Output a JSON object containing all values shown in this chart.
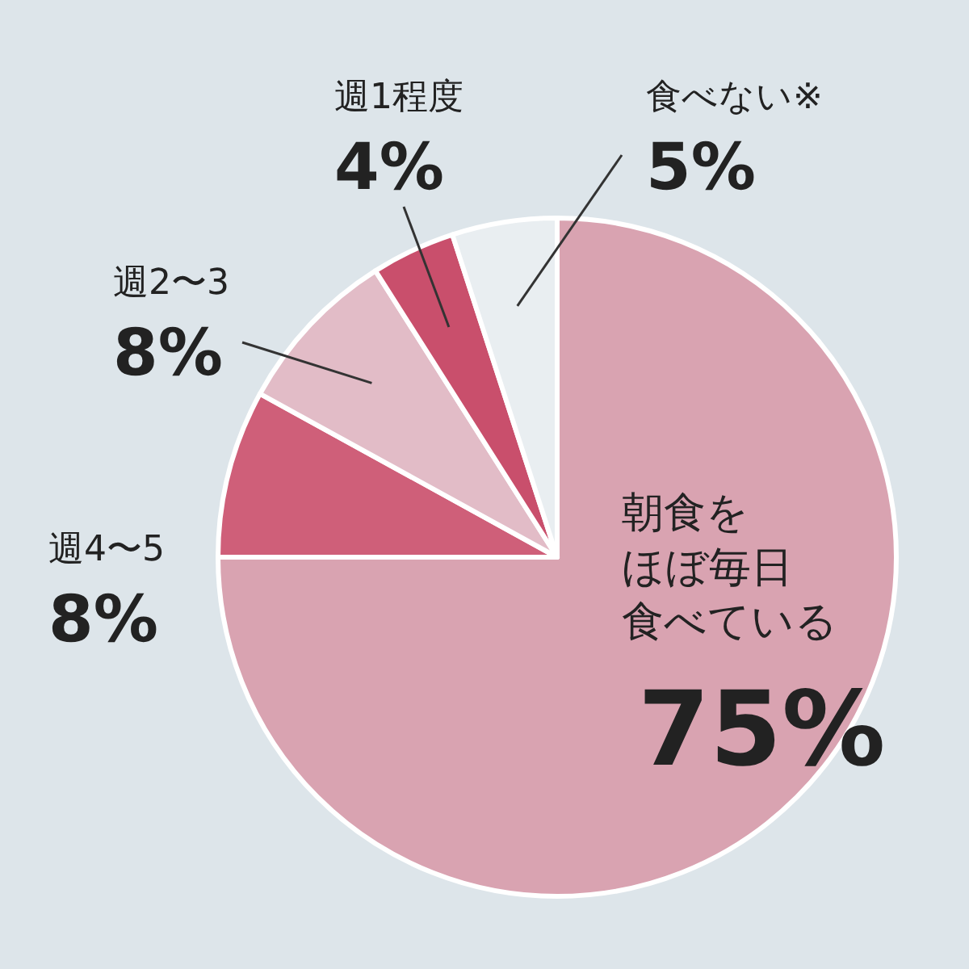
{
  "chart_data": {
    "type": "pie",
    "categories": [
      "朝食をほぼ毎日食べている",
      "週4〜5",
      "週2〜3",
      "週1程度",
      "食べない※"
    ],
    "values": [
      75,
      8,
      8,
      4,
      5
    ],
    "value_labels": [
      "75%",
      "8%",
      "8%",
      "4%",
      "5%"
    ],
    "colors": [
      "#d9a3b1",
      "#cf5f79",
      "#e2bcc7",
      "#c94f6c",
      "#e9eef1"
    ]
  }
}
